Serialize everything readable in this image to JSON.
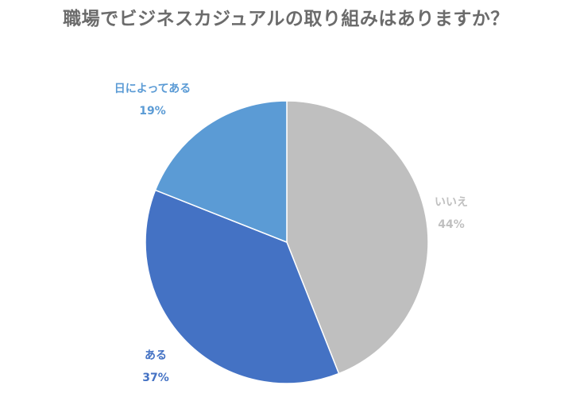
{
  "chart_data": {
    "type": "pie",
    "title": "職場でビジネスカジュアルの取り組みはありますか？",
    "slices": [
      {
        "label": "いいえ",
        "value": 44,
        "value_label": "44%",
        "color": "#bfbfbf"
      },
      {
        "label": "ある",
        "value": 37,
        "value_label": "37%",
        "color": "#4472c4"
      },
      {
        "label": "日によってある",
        "value": 19,
        "value_label": "19%",
        "color": "#5b9bd5"
      }
    ],
    "start": "12 o'clock",
    "direction": "clockwise",
    "legend": "none",
    "data_labels": "outside"
  }
}
